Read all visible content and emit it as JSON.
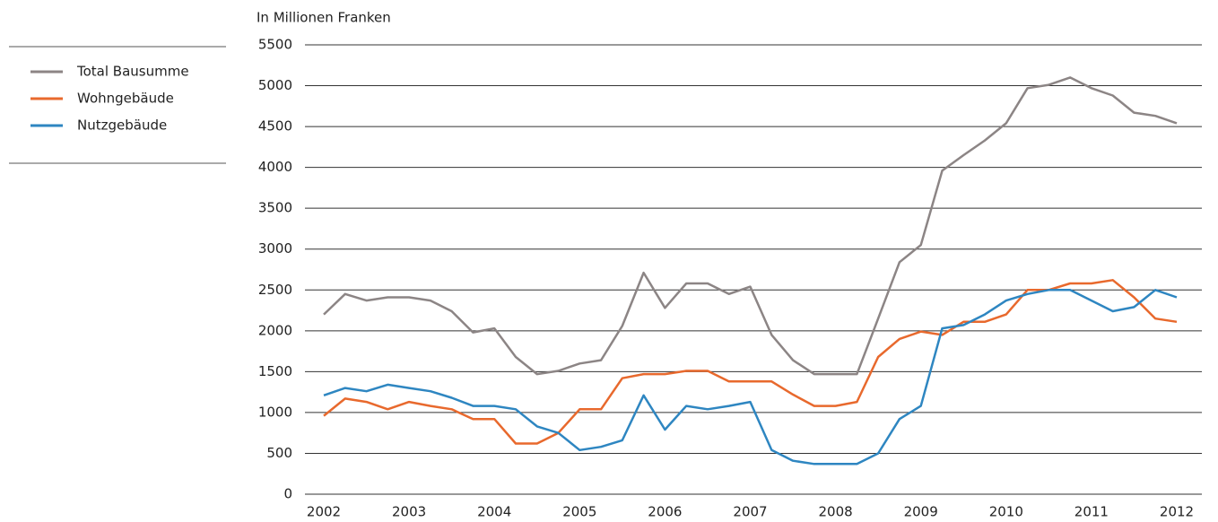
{
  "chart_data": {
    "type": "line",
    "y_axis_label": "In Millionen Franken",
    "x": [
      2002,
      2002.25,
      2002.5,
      2002.75,
      2003,
      2003.25,
      2003.5,
      2003.75,
      2004,
      2004.25,
      2004.5,
      2004.75,
      2005,
      2005.25,
      2005.5,
      2005.75,
      2006,
      2006.25,
      2006.5,
      2006.75,
      2007,
      2007.25,
      2007.5,
      2007.75,
      2008,
      2008.25,
      2008.5,
      2008.75,
      2009,
      2009.25,
      2009.5,
      2009.75,
      2010,
      2010.25,
      2010.5,
      2010.75,
      2011,
      2011.25,
      2011.5,
      2011.75,
      2012
    ],
    "series": [
      {
        "name": "Total Bausumme",
        "color": "#8c8585",
        "values": [
          2200,
          2450,
          2370,
          2410,
          2410,
          2370,
          2240,
          1980,
          2030,
          1680,
          1470,
          1510,
          1600,
          1640,
          2060,
          2710,
          2280,
          2580,
          2580,
          2450,
          2540,
          1950,
          1640,
          1470,
          1470,
          1470,
          2150,
          2840,
          3050,
          3960,
          4150,
          4330,
          4540,
          4970,
          5010,
          5100,
          4970,
          4880,
          4670,
          4630,
          4540
        ]
      },
      {
        "name": "Wohngebäude",
        "color": "#e8692d",
        "values": [
          960,
          1170,
          1130,
          1040,
          1130,
          1080,
          1040,
          920,
          920,
          620,
          620,
          750,
          1040,
          1040,
          1420,
          1470,
          1470,
          1510,
          1510,
          1380,
          1380,
          1380,
          1220,
          1080,
          1080,
          1130,
          1680,
          1900,
          1990,
          1950,
          2110,
          2110,
          2200,
          2500,
          2500,
          2580,
          2580,
          2620,
          2410,
          2150,
          2110
        ]
      },
      {
        "name": "Nutzgebäude",
        "color": "#2e86c1",
        "values": [
          1210,
          1300,
          1260,
          1340,
          1300,
          1260,
          1180,
          1080,
          1080,
          1040,
          830,
          750,
          540,
          580,
          660,
          1210,
          790,
          1080,
          1040,
          1080,
          1130,
          540,
          410,
          370,
          370,
          370,
          500,
          920,
          1080,
          2030,
          2070,
          2200,
          2370,
          2450,
          2500,
          2500,
          2370,
          2240,
          2290,
          2500,
          2410
        ]
      }
    ],
    "xlim": [
      2002,
      2012
    ],
    "xticks": [
      2002,
      2003,
      2004,
      2005,
      2006,
      2007,
      2008,
      2009,
      2010,
      2011,
      2012
    ],
    "ylim": [
      0,
      5500
    ],
    "yticks": [
      0,
      500,
      1000,
      1500,
      2000,
      2500,
      3000,
      3500,
      4000,
      4500,
      5000,
      5500
    ],
    "grid": true,
    "legend": "left"
  }
}
